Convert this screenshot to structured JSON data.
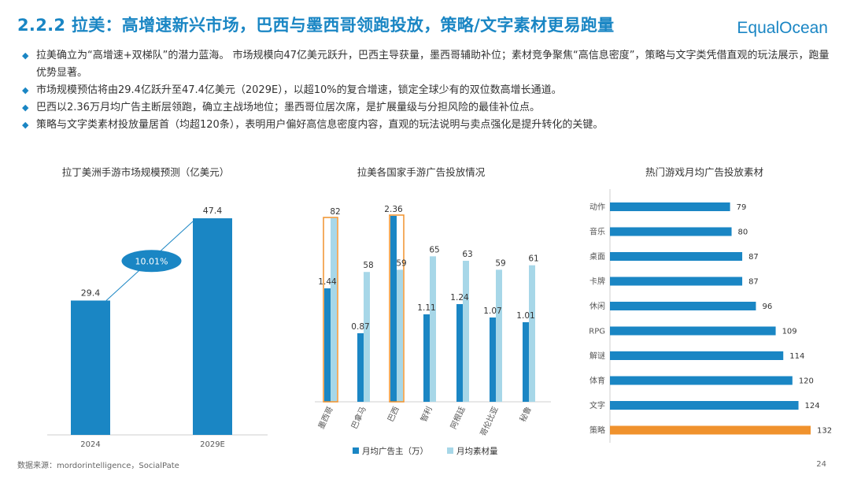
{
  "header": {
    "title": "2.2.2 拉美：高增速新兴市场，巴西与墨西哥领跑投放，策略/文字素材更易跑量",
    "logo": "EqualOcean"
  },
  "bullets": [
    "拉美确立为“高增速+双梯队”的潜力蓝海。 市场规模向47亿美元跃升，巴西主导获量，墨西哥辅助补位；素材竞争聚焦“高信息密度”，策略与文字类凭借直观的玩法展示，跑量优势显著。",
    "市场规模预估将由29.4亿跃升至47.4亿美元（2029E），以超10%的复合增速，锁定全球少有的双位数高增长通道。",
    "巴西以2.36万月均广告主断层领跑，确立主战场地位；墨西哥位居次席，是扩展量级与分担风险的最佳补位点。",
    "策略与文字类素材投放量居首（均超120条），表明用户偏好高信息密度内容，直观的玩法说明与卖点强化是提升转化的关键。"
  ],
  "footer": {
    "source": "数据来源：mordorintelligence，SocialPate",
    "page": "24"
  },
  "colors": {
    "primary": "#1a86c4",
    "light": "#a7d7e8",
    "highlight": "#f0922d",
    "growth_label": "#1a86c4"
  },
  "chart_data": [
    {
      "type": "bar",
      "title": "拉丁美洲手游市场规模预测（亿美元）",
      "categories": [
        "2024",
        "2029E"
      ],
      "values": [
        29.4,
        47.4
      ],
      "value_labels": [
        "29.4",
        "47.4"
      ],
      "annotation": "10.01%",
      "ylim": [
        0,
        50
      ]
    },
    {
      "type": "bar",
      "title": "拉美各国家手游广告投放情况",
      "categories": [
        "墨西哥",
        "巴拿马",
        "巴西",
        "智利",
        "阿根廷",
        "哥伦比亚",
        "秘鲁"
      ],
      "series": [
        {
          "name": "月均广告主（万）",
          "values": [
            1.44,
            0.87,
            2.36,
            1.11,
            1.24,
            1.07,
            1.01
          ],
          "labels": [
            "1.44",
            "0.87",
            "2.36",
            "1.11",
            "1.24",
            "1.07",
            "1.01"
          ],
          "ylim": [
            0,
            2.5
          ]
        },
        {
          "name": "月均素材量",
          "values": [
            82,
            58,
            59,
            65,
            63,
            59,
            61
          ],
          "labels": [
            "82",
            "58",
            "59",
            "65",
            "63",
            "59",
            "61"
          ],
          "ylim": [
            0,
            88
          ]
        }
      ],
      "highlighted": [
        "墨西哥",
        "巴西"
      ]
    },
    {
      "type": "bar",
      "orientation": "horizontal",
      "title": "热门游戏月均广告投放素材",
      "categories": [
        "动作",
        "音乐",
        "桌面",
        "卡牌",
        "休闲",
        "RPG",
        "解谜",
        "体育",
        "文字",
        "策略"
      ],
      "values": [
        79,
        80,
        87,
        87,
        96,
        109,
        114,
        120,
        124,
        132
      ],
      "labels": [
        "79",
        "80",
        "87",
        "87",
        "96",
        "109",
        "114",
        "120",
        "124",
        "132"
      ],
      "highlighted": [
        "策略"
      ],
      "xlim": [
        0,
        132
      ]
    }
  ]
}
